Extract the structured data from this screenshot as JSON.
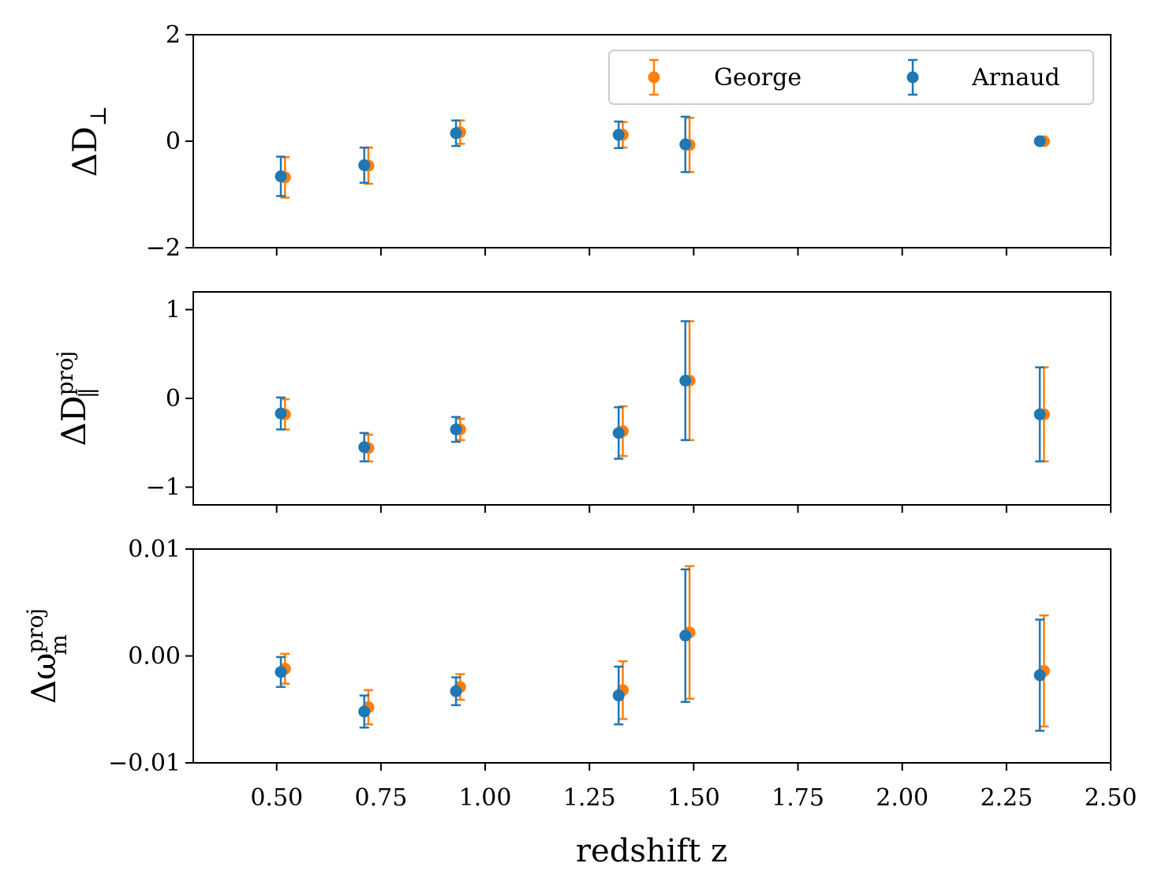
{
  "colors": {
    "george": "#ff7f0e",
    "arnaud": "#1f77b4",
    "axis": "#000000",
    "legend_border": "#cccccc"
  },
  "chart_data": {
    "type": "errorbar",
    "xlabel": "redshift z",
    "xlim": [
      0.3,
      2.5
    ],
    "x_ticks": [
      0.5,
      0.75,
      1.0,
      1.25,
      1.5,
      1.75,
      2.0,
      2.25,
      2.5
    ],
    "x_tick_labels": [
      "0.50",
      "0.75",
      "1.00",
      "1.25",
      "1.50",
      "1.75",
      "2.00",
      "2.25",
      "2.50"
    ],
    "legend": {
      "placement": "top-right",
      "columns": 2,
      "entries": [
        "George",
        "Arnaud"
      ]
    },
    "panels": [
      {
        "id": "dperp",
        "ylabel_main": "ΔD",
        "ylabel_sub": "⊥",
        "ylabel_sup": "",
        "ylim": [
          -2,
          2
        ],
        "y_ticks": [
          -2,
          0,
          2
        ],
        "y_tick_labels": [
          "−2",
          "0",
          "2"
        ],
        "series": [
          {
            "name": "George",
            "color": "#ff7f0e",
            "x": [
              0.52,
              0.72,
              0.94,
              1.33,
              1.49,
              2.34
            ],
            "y": [
              -0.68,
              -0.46,
              0.17,
              0.12,
              -0.07,
              0.0
            ],
            "err": [
              0.38,
              0.34,
              0.22,
              0.24,
              0.51,
              0.05
            ]
          },
          {
            "name": "Arnaud",
            "color": "#1f77b4",
            "x": [
              0.51,
              0.71,
              0.93,
              1.32,
              1.48,
              2.33
            ],
            "y": [
              -0.66,
              -0.45,
              0.15,
              0.12,
              -0.06,
              0.0
            ],
            "err": [
              0.37,
              0.33,
              0.24,
              0.25,
              0.52,
              0.04
            ]
          }
        ]
      },
      {
        "id": "dpar",
        "ylabel_main": "ΔD",
        "ylabel_sub": "∥",
        "ylabel_sup": "proj",
        "ylim": [
          -1.2,
          1.2
        ],
        "y_ticks": [
          -1,
          0,
          1
        ],
        "y_tick_labels": [
          "−1",
          "0",
          "1"
        ],
        "series": [
          {
            "name": "George",
            "color": "#ff7f0e",
            "x": [
              0.52,
              0.72,
              0.94,
              1.33,
              1.49,
              2.34
            ],
            "y": [
              -0.18,
              -0.56,
              -0.35,
              -0.37,
              0.2,
              -0.18
            ],
            "err": [
              0.17,
              0.15,
              0.12,
              0.28,
              0.67,
              0.53
            ]
          },
          {
            "name": "Arnaud",
            "color": "#1f77b4",
            "x": [
              0.51,
              0.71,
              0.93,
              1.32,
              1.48,
              2.33
            ],
            "y": [
              -0.17,
              -0.55,
              -0.35,
              -0.39,
              0.2,
              -0.18
            ],
            "err": [
              0.18,
              0.16,
              0.14,
              0.29,
              0.67,
              0.53
            ]
          }
        ]
      },
      {
        "id": "omega",
        "ylabel_main": "Δω",
        "ylabel_sub": "m",
        "ylabel_sup": "proj",
        "ylim": [
          -0.01,
          0.01
        ],
        "y_ticks": [
          -0.01,
          0.0,
          0.01
        ],
        "y_tick_labels": [
          "−0.01",
          "0.00",
          "0.01"
        ],
        "series": [
          {
            "name": "George",
            "color": "#ff7f0e",
            "x": [
              0.52,
              0.72,
              0.94,
              1.33,
              1.49,
              2.34
            ],
            "y": [
              -0.0012,
              -0.0048,
              -0.0029,
              -0.0032,
              0.0022,
              -0.0014
            ],
            "err": [
              0.0014,
              0.0016,
              0.0012,
              0.0027,
              0.0062,
              0.0052
            ]
          },
          {
            "name": "Arnaud",
            "color": "#1f77b4",
            "x": [
              0.51,
              0.71,
              0.93,
              1.32,
              1.48,
              2.33
            ],
            "y": [
              -0.0015,
              -0.0052,
              -0.0033,
              -0.0037,
              0.0019,
              -0.0018
            ],
            "err": [
              0.0014,
              0.0015,
              0.0013,
              0.0027,
              0.0062,
              0.0052
            ]
          }
        ]
      }
    ]
  }
}
